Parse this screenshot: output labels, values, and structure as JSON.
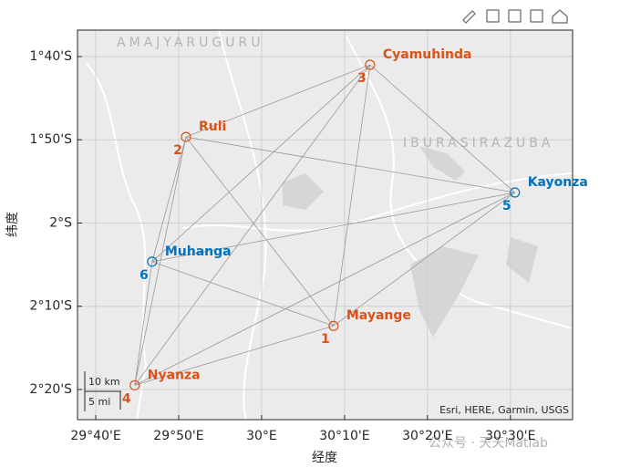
{
  "chart_data": {
    "type": "scatter",
    "xlabel": "经度",
    "ylabel": "纬度",
    "names": [
      "Mayange",
      "Ruli",
      "Cyamuhinda",
      "Nyanza",
      "Kayonza",
      "Muhanga"
    ],
    "ids": [
      "1",
      "2",
      "3",
      "4",
      "5",
      "6"
    ],
    "x": [
      30.1447,
      29.848,
      30.218,
      29.745,
      30.509,
      29.78
    ],
    "y": [
      -2.206,
      -1.8276,
      -1.6831,
      -2.3249,
      -1.9389,
      -2.0774
    ],
    "colors": [
      "#d95319",
      "#d95319",
      "#d95319",
      "#d95319",
      "#0072bd",
      "#0072bd"
    ],
    "xlim": [
      29.63,
      30.625
    ],
    "ylim": [
      -2.3937,
      -1.6137
    ],
    "xticks": [
      {
        "value": 29.6667,
        "label": "29°40'E"
      },
      {
        "value": 29.8333,
        "label": "29°50'E"
      },
      {
        "value": 30,
        "label": "30°E"
      },
      {
        "value": 30.1667,
        "label": "30°10'E"
      },
      {
        "value": 30.3333,
        "label": "30°20'E"
      },
      {
        "value": 30.5,
        "label": "30°30'E"
      }
    ],
    "yticks": [
      {
        "value": -1.6667,
        "label": "1°40'S"
      },
      {
        "value": -1.8333,
        "label": "1°50'S"
      },
      {
        "value": -2,
        "label": "2°S"
      },
      {
        "value": -2.1667,
        "label": "2°10'S"
      },
      {
        "value": -2.3333,
        "label": "2°20'S"
      }
    ],
    "grid": true,
    "regions": [
      "AMAJYARUGURU",
      "IBURASIRAZUBA"
    ],
    "attribution": "Esri, HERE, Garmin, USGS",
    "scalebar": [
      "10 km",
      "5 mi"
    ]
  },
  "watermark": "公众号 · 天天Matlab"
}
